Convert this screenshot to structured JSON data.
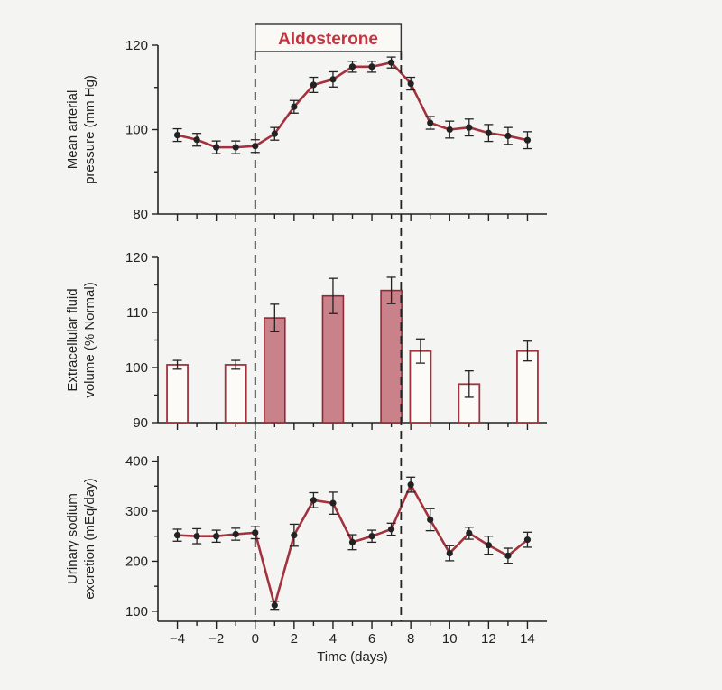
{
  "chart_data": [
    {
      "type": "line",
      "title": "",
      "ylabel": [
        "Mean arterial",
        "pressure (mm Hg)"
      ],
      "xlabel": "",
      "ylim": [
        80,
        120
      ],
      "yticks": [
        80,
        100,
        120
      ],
      "xlim": [
        -5,
        15
      ],
      "series": [
        {
          "x": [
            -4,
            -3,
            -2,
            -1,
            0,
            1,
            2,
            3,
            4,
            5,
            6,
            7,
            8,
            9,
            10,
            11,
            12,
            13,
            14
          ],
          "y": [
            98.7,
            97.6,
            95.8,
            95.8,
            96.1,
            99.0,
            105.4,
            110.6,
            111.9,
            114.9,
            114.9,
            115.9,
            110.9,
            101.6,
            100.0,
            100.5,
            99.2,
            98.5,
            97.5
          ],
          "err": [
            1.5,
            1.5,
            1.5,
            1.5,
            1.5,
            1.5,
            1.5,
            1.8,
            1.8,
            1.3,
            1.3,
            1.3,
            1.5,
            1.5,
            2.0,
            2.0,
            2.0,
            2.0,
            2.0
          ]
        }
      ]
    },
    {
      "type": "bar",
      "title": "",
      "ylabel": [
        "Extracellular fluid",
        "volume (% Normal)"
      ],
      "xlabel": "",
      "ylim": [
        90,
        120
      ],
      "yticks": [
        90,
        100,
        110,
        120
      ],
      "xlim": [
        -5,
        15
      ],
      "bars": [
        {
          "x": -4,
          "value": 100.5,
          "err": 0.8,
          "filled": false
        },
        {
          "x": -1,
          "value": 100.5,
          "err": 0.8,
          "filled": false
        },
        {
          "x": 1,
          "value": 109.0,
          "err": 2.5,
          "filled": true
        },
        {
          "x": 4,
          "value": 113.0,
          "err": 3.2,
          "filled": true
        },
        {
          "x": 7,
          "value": 114.0,
          "err": 2.4,
          "filled": true
        },
        {
          "x": 8.5,
          "value": 103.0,
          "err": 2.2,
          "filled": false
        },
        {
          "x": 11,
          "value": 97.0,
          "err": 2.4,
          "filled": false
        },
        {
          "x": 14,
          "value": 103.0,
          "err": 1.8,
          "filled": false
        }
      ]
    },
    {
      "type": "line",
      "title": "",
      "ylabel": [
        "Urinary sodium",
        "excretion (mEq/day)"
      ],
      "xlabel": "Time (days)",
      "ylim": [
        80,
        410
      ],
      "yticks": [
        100,
        200,
        300,
        400
      ],
      "xticks": [
        -4,
        -2,
        0,
        2,
        4,
        6,
        8,
        10,
        12,
        14
      ],
      "xlim": [
        -5,
        15
      ],
      "series": [
        {
          "x": [
            -4,
            -3,
            -2,
            -1,
            0,
            1,
            2,
            3,
            4,
            5,
            6,
            7,
            8,
            9,
            10,
            11,
            12,
            13,
            14
          ],
          "y": [
            252,
            250,
            250,
            254,
            257,
            112,
            252,
            322,
            316,
            238,
            250,
            264,
            353,
            283,
            216,
            256,
            232,
            211,
            243
          ],
          "err": [
            12,
            15,
            12,
            12,
            12,
            8,
            22,
            15,
            22,
            15,
            12,
            12,
            15,
            22,
            15,
            12,
            18,
            15,
            15
          ]
        }
      ]
    }
  ],
  "annotation": {
    "label": "Aldosterone",
    "x_start": 0,
    "x_end": 7.5
  }
}
